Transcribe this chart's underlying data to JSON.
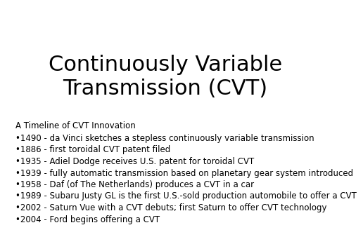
{
  "title": "Continuously Variable\nTransmission (CVT)",
  "title_fontsize": 22,
  "title_font": "DejaVu Sans",
  "background_color": "#ffffff",
  "text_color": "#000000",
  "subtitle": "A Timeline of CVT Innovation",
  "subtitle_fontsize": 8.5,
  "bullet_items": [
    "1490 - da Vinci sketches a stepless continuously variable transmission",
    "1886 - first toroidal CVT patent filed",
    "1935 - Adiel Dodge receives U.S. patent for toroidal CVT",
    "1939 - fully automatic transmission based on planetary gear system introduced",
    "1958 - Daf (of The Netherlands) produces a CVT in a car",
    "1989 - Subaru Justy GL is the first U.S.-sold production automobile to offer a CVT",
    "2002 - Saturn Vue with a CVT debuts; first Saturn to offer CVT technology",
    "2004 - Ford begins offering a CVT"
  ],
  "bullet_fontsize": 8.5,
  "bullet_char": "•"
}
